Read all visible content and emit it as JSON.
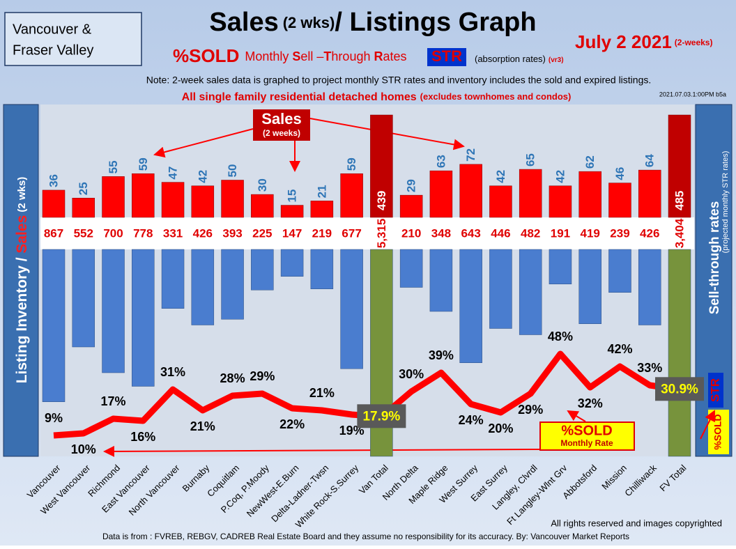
{
  "box": [
    "Vancouver &",
    "Fraser Valley"
  ],
  "title": {
    "main": "Sales",
    "sub": "(2 wks)",
    "rest": "/ Listings Graph"
  },
  "date": {
    "main": "July  2 2021",
    "sub": "(2-weeks)"
  },
  "subtitle": {
    "sold": "%SOLD",
    "m": "Monthly ",
    "s": "S",
    "ell": "ell –",
    "t": "T",
    "hrough": "hrough ",
    "r": "R",
    "ates": "ates",
    "str": "STR",
    "abs": "(absorption rates)",
    "ver": "(vr3)"
  },
  "note": "Note: 2-week sales data is graphed to project monthly STR rates and inventory includes the sold and expired listings.",
  "scope": {
    "main": "All single family residential detached homes",
    "sub": "(excludes townhomes and condos)"
  },
  "timestamp": "2021.07.03.1:00PM b5a",
  "left_panel": {
    "a": "Listing Inventory / ",
    "b": "Sales",
    "c": " (2 wks)"
  },
  "right_panel": {
    "a": "Sell-through rates",
    "b": "(projected monthly STR rates)",
    "str": "STR",
    "sold": "%SOLD"
  },
  "annotations": {
    "sales": "Sales",
    "sales_sub": "(2 weeks)",
    "sold": "%SOLD",
    "sold_sub": "Monthly Rate"
  },
  "footer": {
    "rights": "All rights reserved and  images copyrighted",
    "source": "Data is from : FVREB, REBGV, CADREB Real Estate Board and they assume no responsibility for its accuracy. By: Vancouver Market Reports"
  },
  "chart_data": {
    "type": "combo",
    "categories": [
      "Vancouver",
      "West Vancouver",
      "Richmond",
      "East Vancouver",
      "North Vancouver",
      "Burnaby",
      "Coquitlam",
      "P.Coq, P.Moody",
      "NewWest-E.Burn",
      "Delta-Ladner-Twsn",
      "White Rock-S.Surrey",
      "Van Total",
      "North Delta",
      "Maple Ridge",
      "West Surrey",
      "East Surrey",
      "Langley, Clvrdl",
      "Ft Langley-Wlnt Grv",
      "Abbotsford",
      "Mission",
      "Chilliwack",
      "FV Total"
    ],
    "sales": {
      "color": "#ff0000",
      "total_color": "#c00000",
      "label_color": "#2e75b6",
      "values": [
        36,
        25,
        55,
        59,
        47,
        42,
        50,
        30,
        15,
        21,
        59,
        439,
        29,
        63,
        72,
        42,
        65,
        42,
        62,
        46,
        64,
        485
      ]
    },
    "listings": {
      "color": "#4a7dcf",
      "total_color": "#77933c",
      "label_color": "#e00000",
      "values": [
        867,
        552,
        700,
        778,
        331,
        426,
        393,
        225,
        147,
        219,
        677,
        5315,
        210,
        348,
        643,
        446,
        482,
        191,
        419,
        239,
        426,
        3404
      ],
      "value_labels": [
        "867",
        "552",
        "700",
        "778",
        "331",
        "426",
        "393",
        "225",
        "147",
        "219",
        "677",
        "5,315",
        "210",
        "348",
        "643",
        "446",
        "482",
        "191",
        "419",
        "239",
        "426",
        "3,404"
      ]
    },
    "str": {
      "color": "#ff0000",
      "values": [
        9,
        10,
        17,
        16,
        31,
        21,
        28,
        29,
        22,
        21,
        19,
        17.9,
        30,
        39,
        24,
        20,
        29,
        48,
        32,
        42,
        33,
        30.9
      ],
      "value_labels": [
        "9%",
        "10%",
        "17%",
        "16%",
        "31%",
        "21%",
        "28%",
        "29%",
        "22%",
        "21%",
        "19%",
        "17.9%",
        "30%",
        "39%",
        "24%",
        "20%",
        "29%",
        "48%",
        "32%",
        "42%",
        "33%",
        "30.9%"
      ]
    }
  }
}
